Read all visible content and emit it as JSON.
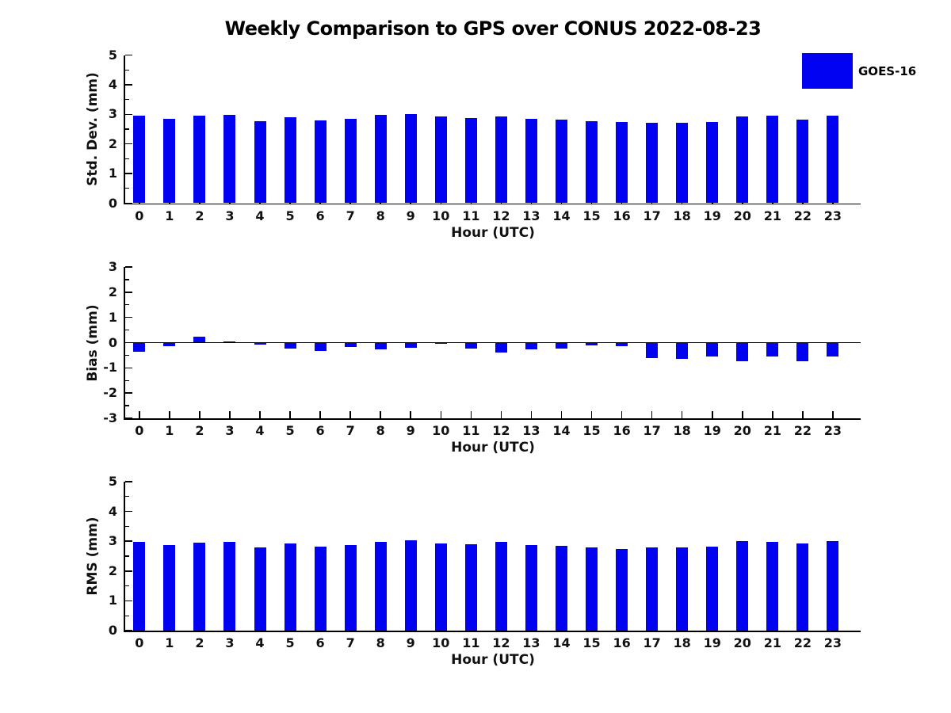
{
  "title": "Weekly Comparison to GPS over CONUS 2022-08-23",
  "legend": {
    "label": "GOES-16",
    "swatch_color": "#0202F2"
  },
  "colors": {
    "bar": "#0202F2",
    "axis": "#000000",
    "text": "#111111"
  },
  "chart_data": [
    {
      "type": "bar",
      "name": "std-dev",
      "ylabel": "Std. Dev. (mm)",
      "xlabel": "Hour (UTC)",
      "categories": [
        "0",
        "1",
        "2",
        "3",
        "4",
        "5",
        "6",
        "7",
        "8",
        "9",
        "10",
        "11",
        "12",
        "13",
        "14",
        "15",
        "16",
        "17",
        "18",
        "19",
        "20",
        "21",
        "22",
        "23"
      ],
      "series": [
        {
          "name": "GOES-16",
          "values": [
            2.95,
            2.85,
            2.95,
            2.98,
            2.77,
            2.91,
            2.8,
            2.86,
            2.98,
            3.01,
            2.93,
            2.88,
            2.93,
            2.85,
            2.83,
            2.78,
            2.74,
            2.72,
            2.72,
            2.75,
            2.92,
            2.95,
            2.83,
            2.95
          ]
        }
      ],
      "ylim": [
        0,
        5
      ],
      "yticks": [
        0,
        1,
        2,
        3,
        4,
        5
      ],
      "minor_ytick_step": 0.5,
      "grid": false,
      "zero_line": false,
      "legend_position": "outside-top-right"
    },
    {
      "type": "bar",
      "name": "bias",
      "ylabel": "Bias (mm)",
      "xlabel": "Hour (UTC)",
      "categories": [
        "0",
        "1",
        "2",
        "3",
        "4",
        "5",
        "6",
        "7",
        "8",
        "9",
        "10",
        "11",
        "12",
        "13",
        "14",
        "15",
        "16",
        "17",
        "18",
        "19",
        "20",
        "21",
        "22",
        "23"
      ],
      "series": [
        {
          "name": "GOES-16",
          "values": [
            -0.35,
            -0.14,
            0.24,
            0.05,
            -0.08,
            -0.24,
            -0.32,
            -0.16,
            -0.26,
            -0.19,
            -0.05,
            -0.24,
            -0.38,
            -0.26,
            -0.23,
            -0.1,
            -0.13,
            -0.6,
            -0.63,
            -0.56,
            -0.75,
            -0.55,
            -0.73,
            -0.55
          ]
        }
      ],
      "ylim": [
        -3,
        3
      ],
      "yticks": [
        -3,
        -2,
        -1,
        0,
        1,
        2,
        3
      ],
      "minor_ytick_step": 0.5,
      "grid": false,
      "zero_line": true,
      "legend_position": "none"
    },
    {
      "type": "bar",
      "name": "rms",
      "ylabel": "RMS (mm)",
      "xlabel": "Hour (UTC)",
      "categories": [
        "0",
        "1",
        "2",
        "3",
        "4",
        "5",
        "6",
        "7",
        "8",
        "9",
        "10",
        "11",
        "12",
        "13",
        "14",
        "15",
        "16",
        "17",
        "18",
        "19",
        "20",
        "21",
        "22",
        "23"
      ],
      "series": [
        {
          "name": "GOES-16",
          "values": [
            2.97,
            2.86,
            2.96,
            2.98,
            2.78,
            2.92,
            2.81,
            2.87,
            2.99,
            3.02,
            2.93,
            2.89,
            2.97,
            2.87,
            2.84,
            2.78,
            2.74,
            2.79,
            2.79,
            2.81,
            3.01,
            2.99,
            2.92,
            3.0
          ]
        }
      ],
      "ylim": [
        0,
        5
      ],
      "yticks": [
        0,
        1,
        2,
        3,
        4,
        5
      ],
      "minor_ytick_step": 0.5,
      "grid": false,
      "zero_line": false,
      "legend_position": "none"
    }
  ]
}
